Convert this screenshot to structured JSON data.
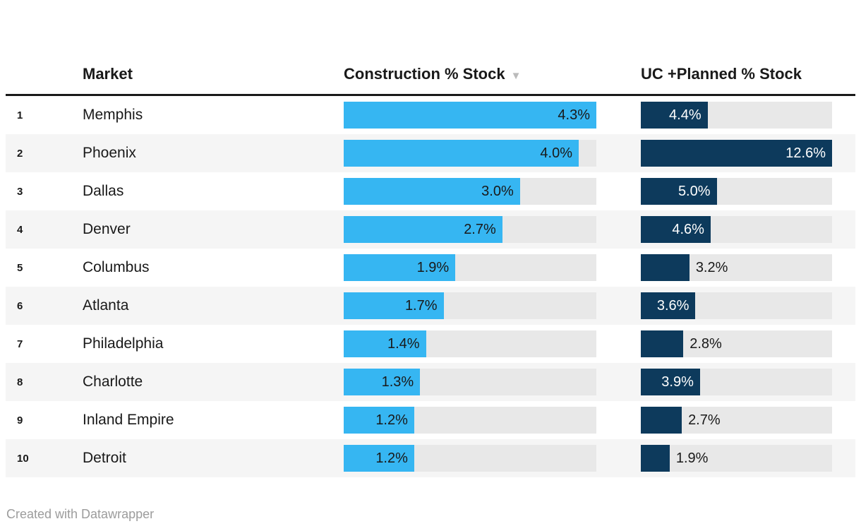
{
  "table": {
    "columns": [
      {
        "label": "Market"
      },
      {
        "label": "Construction % Stock",
        "sort_icon": "▼",
        "sorted": "desc"
      },
      {
        "label": "UC +Planned % Stock"
      }
    ]
  },
  "footer": {
    "text": "Created with Datawrapper"
  },
  "colors": {
    "construction_bar": "#36b6f2",
    "uc_bar": "#0d3a5c",
    "bar_track": "#e8e8e8",
    "row_stripe": "#f5f5f5",
    "header_rule": "#191919",
    "text": "#191919",
    "label_on_dark": "#ffffff",
    "sort_icon": "#bbbbbb",
    "footer_text": "#9c9c9c"
  },
  "chart_data": {
    "type": "bar",
    "subtype": "table-with-inline-bar-columns",
    "title": "",
    "categories": [
      "Memphis",
      "Phoenix",
      "Dallas",
      "Denver",
      "Columbus",
      "Atlanta",
      "Philadelphia",
      "Charlotte",
      "Inland Empire",
      "Detroit"
    ],
    "ranks": [
      "1",
      "2",
      "3",
      "4",
      "5",
      "6",
      "7",
      "8",
      "9",
      "10"
    ],
    "series": [
      {
        "name": "Construction % Stock",
        "values": [
          4.3,
          4.0,
          3.0,
          2.7,
          1.9,
          1.7,
          1.4,
          1.3,
          1.2,
          1.2
        ],
        "labels": [
          "4.3%",
          "4.0%",
          "3.0%",
          "2.7%",
          "1.9%",
          "1.7%",
          "1.4%",
          "1.3%",
          "1.2%",
          "1.2%"
        ],
        "axis_max": 4.3,
        "label_inside": [
          true,
          true,
          true,
          true,
          true,
          true,
          true,
          true,
          true,
          true
        ]
      },
      {
        "name": "UC +Planned % Stock",
        "values": [
          4.4,
          12.6,
          5.0,
          4.6,
          3.2,
          3.6,
          2.8,
          3.9,
          2.7,
          1.9
        ],
        "labels": [
          "4.4%",
          "12.6%",
          "5.0%",
          "4.6%",
          "3.2%",
          "3.6%",
          "2.8%",
          "3.9%",
          "2.7%",
          "1.9%"
        ],
        "axis_max": 12.6,
        "label_inside": [
          true,
          true,
          true,
          true,
          false,
          true,
          false,
          true,
          false,
          false
        ]
      }
    ],
    "sort": {
      "column": "Construction % Stock",
      "direction": "desc"
    },
    "legend_position": "none",
    "grid": false
  }
}
